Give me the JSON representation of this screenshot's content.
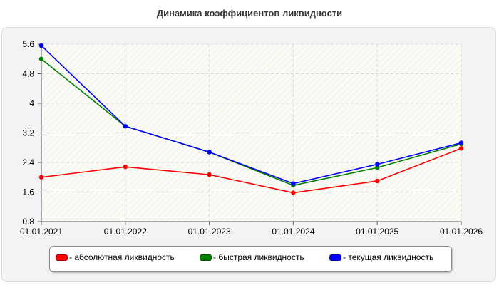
{
  "chart_data": {
    "type": "line",
    "title": "Динамика коэффициентов ликвидности",
    "xlabel": "",
    "ylabel": "",
    "categories": [
      "01.01.2021",
      "01.01.2022",
      "01.01.2023",
      "01.01.2024",
      "01.01.2025",
      "01.01.2026"
    ],
    "y_ticks": [
      "0.8",
      "1.6",
      "2.4",
      "3.2",
      "4",
      "4.8",
      "5.6"
    ],
    "ylim": [
      0.8,
      5.6
    ],
    "grid": true,
    "legend_position": "bottom",
    "series": [
      {
        "name": "- абсолютная ликвидность",
        "color": "#ff0000",
        "values": [
          2.0,
          2.28,
          2.07,
          1.58,
          1.9,
          2.78
        ]
      },
      {
        "name": "- быстрая ликвидность",
        "color": "#008000",
        "values": [
          5.2,
          3.38,
          2.68,
          1.78,
          2.26,
          2.9
        ]
      },
      {
        "name": "- текущая ликвидность",
        "color": "#0000ff",
        "values": [
          5.56,
          3.38,
          2.68,
          1.83,
          2.35,
          2.93
        ]
      }
    ]
  }
}
